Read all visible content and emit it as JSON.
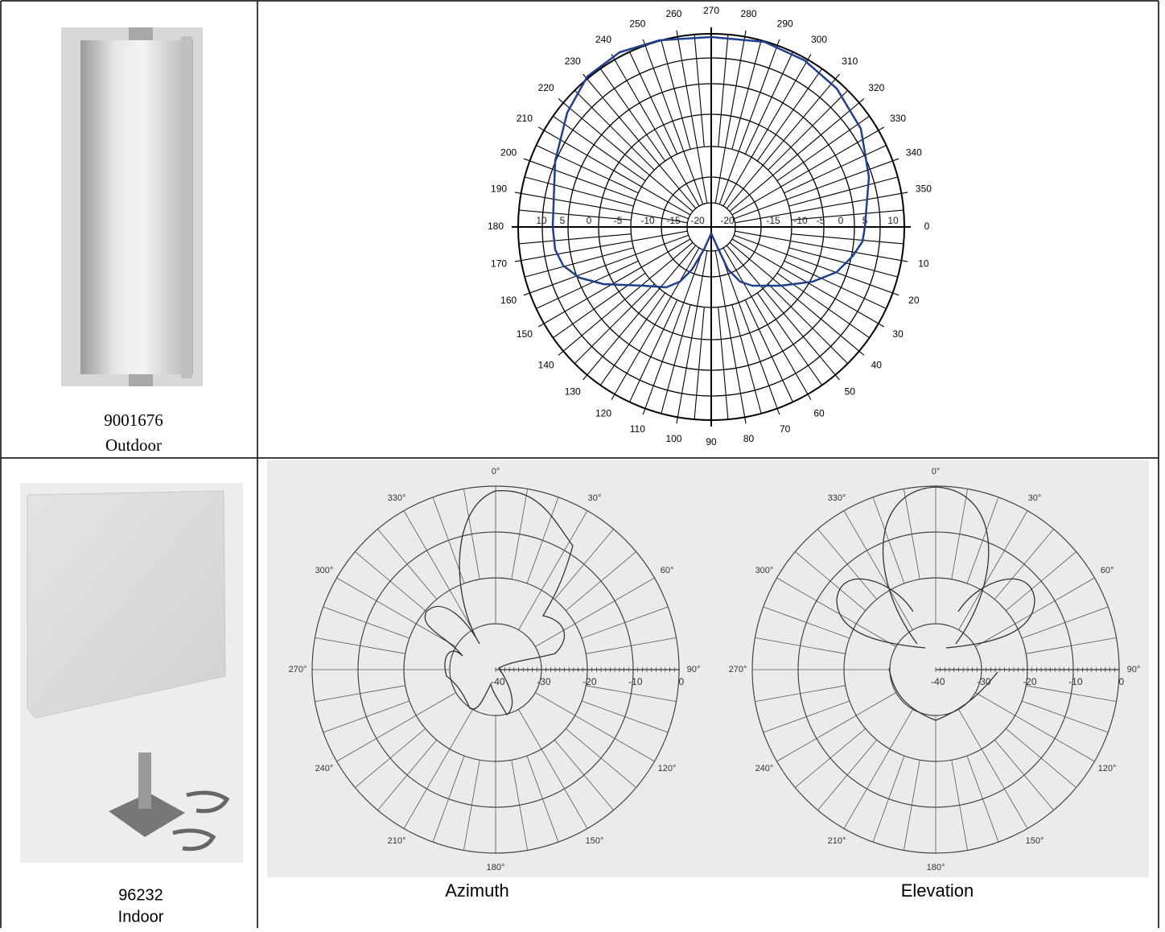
{
  "cells": [
    {
      "model": "9001676",
      "environment": "Outdoor"
    },
    {
      "model": "96232",
      "environment": "Indoor"
    }
  ],
  "top_pattern": {
    "angle_labels": [
      "0",
      "10",
      "20",
      "30",
      "40",
      "50",
      "60",
      "70",
      "80",
      "90",
      "100",
      "110",
      "120",
      "130",
      "140",
      "150",
      "160",
      "170",
      "180",
      "190",
      "200",
      "210",
      "220",
      "230",
      "240",
      "250",
      "260",
      "270",
      "280",
      "290",
      "300",
      "310",
      "320",
      "330",
      "340",
      "350"
    ],
    "radial_labels_left": [
      "10",
      "5",
      "0",
      "-5",
      "-10",
      "-15",
      "-20"
    ],
    "radial_labels_right": [
      "-20",
      "-15",
      "-10",
      "-5",
      "0",
      "5",
      "10"
    ]
  },
  "bottom_patterns": [
    {
      "caption": "Azimuth",
      "angle_labels": [
        "0°",
        "30°",
        "60°",
        "90°",
        "120°",
        "150°",
        "180°",
        "210°",
        "240°",
        "270°",
        "300°",
        "330°"
      ],
      "radial_labels": [
        "-40",
        "-30",
        "-20",
        "-10",
        "0"
      ]
    },
    {
      "caption": "Elevation",
      "angle_labels": [
        "0°",
        "30°",
        "60°",
        "90°",
        "120°",
        "150°",
        "180°",
        "210°",
        "240°",
        "270°",
        "300°",
        "330°"
      ],
      "radial_labels": [
        "-40",
        "-30",
        "-20",
        "-10",
        "0"
      ]
    }
  ]
}
